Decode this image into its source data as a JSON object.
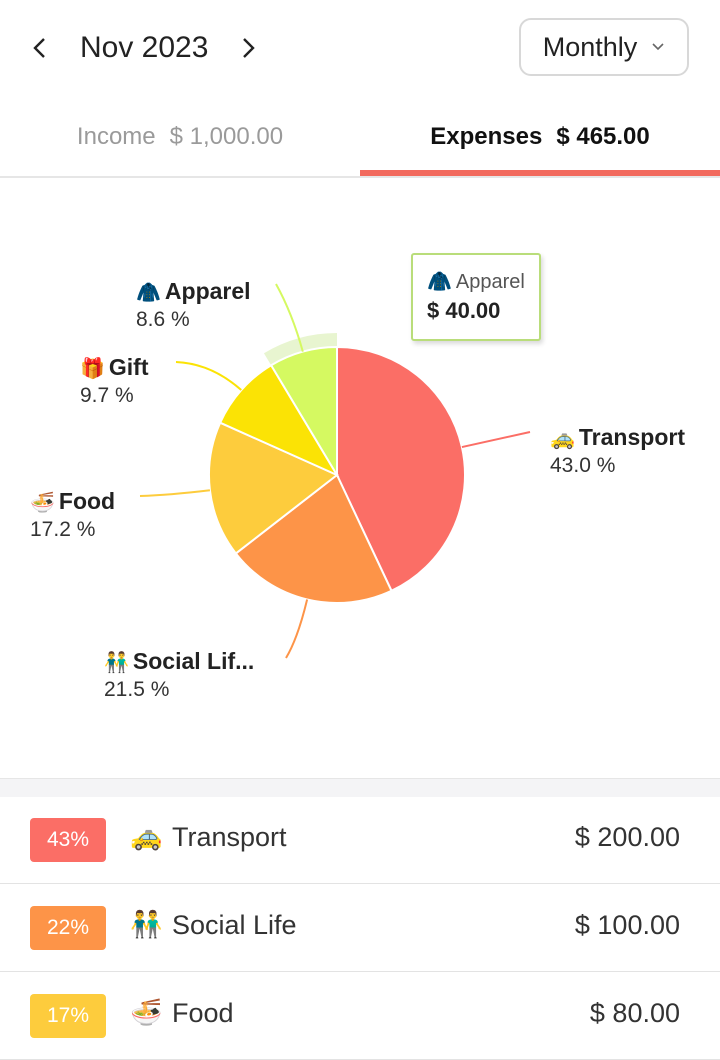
{
  "header": {
    "period": "Nov 2023",
    "view_select": "Monthly"
  },
  "tabs": {
    "income_label": "Income",
    "income_amount": "$ 1,000.00",
    "expenses_label": "Expenses",
    "expenses_amount": "$ 465.00"
  },
  "chart_data": {
    "type": "pie",
    "slices": [
      {
        "name": "Transport",
        "display_name": "Transport",
        "icon": "taxi",
        "percent_label": "43.0 %",
        "value": 43.0,
        "color": "#fb6e66"
      },
      {
        "name": "Social Life",
        "display_name": "Social Lif...",
        "icon": "two-people",
        "percent_label": "21.5 %",
        "value": 21.5,
        "color": "#fd9448"
      },
      {
        "name": "Food",
        "display_name": "Food",
        "icon": "noodle-bowl",
        "percent_label": "17.2 %",
        "value": 17.2,
        "color": "#fdcc3d"
      },
      {
        "name": "Gift",
        "display_name": "Gift",
        "icon": "gift",
        "percent_label": "9.7 %",
        "value": 9.7,
        "color": "#fbe305"
      },
      {
        "name": "Apparel",
        "display_name": "Apparel",
        "icon": "coat",
        "percent_label": "8.6 %",
        "value": 8.6,
        "color": "#d5f961"
      }
    ],
    "selected": "Apparel"
  },
  "tooltip": {
    "icon": "coat",
    "name": "Apparel",
    "amount": "$ 40.00"
  },
  "list": [
    {
      "badge": "43%",
      "color": "#fb6e66",
      "icon": "taxi",
      "name": "Transport",
      "amount": "$ 200.00"
    },
    {
      "badge": "22%",
      "color": "#fd9448",
      "icon": "two-people",
      "name": "Social Life",
      "amount": "$ 100.00"
    },
    {
      "badge": "17%",
      "color": "#fdcc3d",
      "icon": "noodle-bowl",
      "name": "Food",
      "amount": "$ 80.00"
    }
  ]
}
